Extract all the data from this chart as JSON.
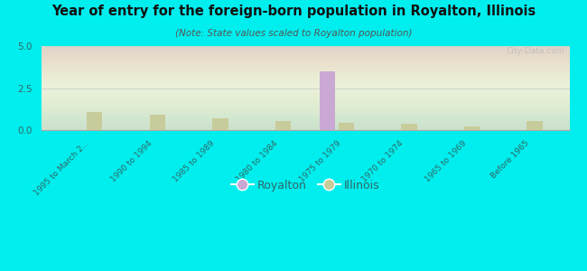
{
  "title": "Year of entry for the foreign-born population in Royalton, Illinois",
  "subtitle": "(Note: State values scaled to Royalton population)",
  "categories": [
    "1995 to March 2...",
    "1990 to 1994",
    "1985 to 1989",
    "1980 to 1984",
    "1975 to 1979",
    "1970 to 1974",
    "1965 to 1969",
    "Before 1965"
  ],
  "royalton_values": [
    0,
    0,
    0,
    0,
    3.5,
    0,
    0,
    0
  ],
  "illinois_values": [
    1.1,
    0.9,
    0.7,
    0.55,
    0.45,
    0.35,
    0.2,
    0.55
  ],
  "royalton_color": "#c9a8d4",
  "illinois_color": "#c8cc9a",
  "background_color": "#00eeee",
  "ylim": [
    0,
    5
  ],
  "yticks": [
    0,
    2.5,
    5
  ],
  "bar_width": 0.25,
  "watermark": "City-Data.com",
  "plot_bg": "#e8f0e0",
  "grid_color": "#d0d8c8",
  "tick_label_color": "#336666"
}
